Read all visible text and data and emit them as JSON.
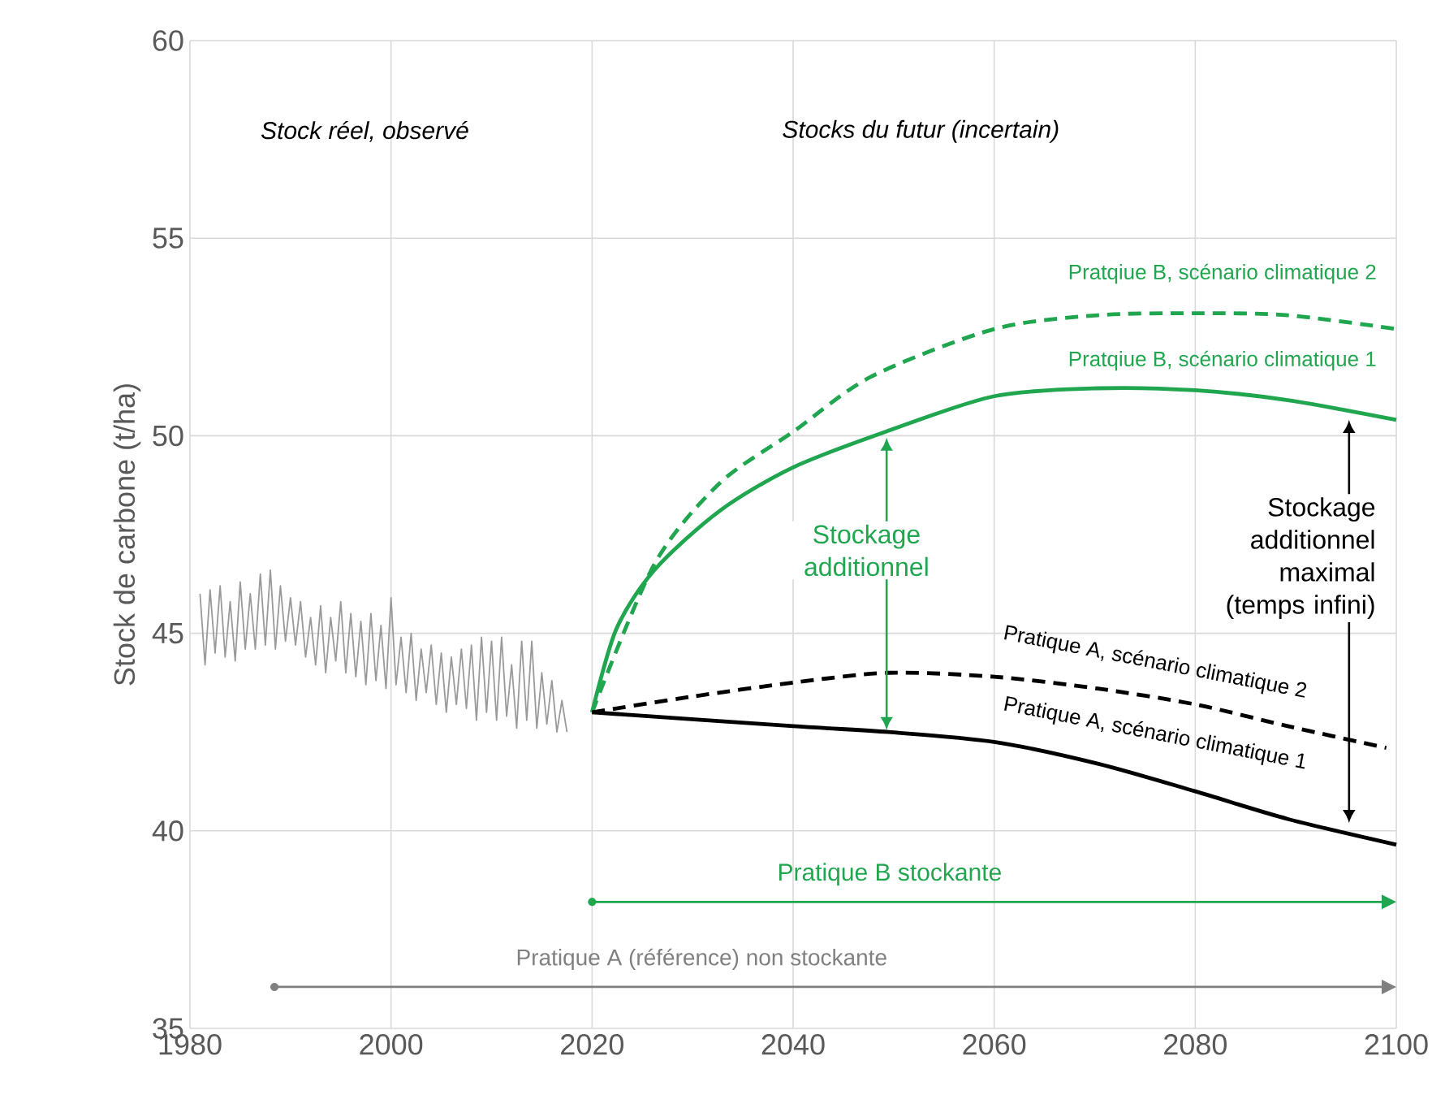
{
  "chart_data": {
    "type": "line",
    "ylabel": "Stock de carbone (t/ha)",
    "xlim": [
      1980,
      2100
    ],
    "xticks": [
      1980,
      2000,
      2020,
      2040,
      2060,
      2080,
      2100
    ],
    "ylim": [
      35,
      60
    ],
    "yticks": [
      35,
      40,
      45,
      50,
      55,
      60
    ],
    "grid": true,
    "marker": "none",
    "series": [
      {
        "color": "#9a9a9a",
        "line_style": "solid",
        "x": [
          1981,
          1981.5,
          1982,
          1982.5,
          1983,
          1983.5,
          1984,
          1984.5,
          1985,
          1985.5,
          1986,
          1986.5,
          1987,
          1987.5,
          1988,
          1988.5,
          1989,
          1989.5,
          1990,
          1990.5,
          1991,
          1991.5,
          1992,
          1992.5,
          1993,
          1993.5,
          1994,
          1994.5,
          1995,
          1995.5,
          1996,
          1996.5,
          1997,
          1997.5,
          1998,
          1998.5,
          1999,
          1999.5,
          2000,
          2000.5,
          2001,
          2001.5,
          2002,
          2002.5,
          2003,
          2003.5,
          2004,
          2004.5,
          2005,
          2005.5,
          2006,
          2006.5,
          2007,
          2007.5,
          2008,
          2008.5,
          2009,
          2009.5,
          2010,
          2010.5,
          2011,
          2011.5,
          2012,
          2012.5,
          2013,
          2013.5,
          2014,
          2014.5,
          2015,
          2015.5,
          2016,
          2016.5,
          2017,
          2017.5
        ],
        "values": [
          46.0,
          44.2,
          46.1,
          44.5,
          46.2,
          44.4,
          45.8,
          44.3,
          46.3,
          44.6,
          46.0,
          44.6,
          46.5,
          44.7,
          46.6,
          44.6,
          46.2,
          44.8,
          45.9,
          44.7,
          45.8,
          44.4,
          45.4,
          44.2,
          45.7,
          44.0,
          45.4,
          44.3,
          45.8,
          44.0,
          45.5,
          43.9,
          45.3,
          43.7,
          45.5,
          43.8,
          45.2,
          43.6,
          45.9,
          43.7,
          44.9,
          43.5,
          45.0,
          43.3,
          44.6,
          43.5,
          44.7,
          43.2,
          44.5,
          43.0,
          44.4,
          43.2,
          44.6,
          43.1,
          44.7,
          42.8,
          44.9,
          43.0,
          44.8,
          42.8,
          44.9,
          42.9,
          44.2,
          42.6,
          44.8,
          42.8,
          44.8,
          42.6,
          44.0,
          42.7,
          43.8,
          42.5,
          43.3,
          42.5
        ]
      },
      {
        "color": "#1fa64f",
        "line_style": "dashed",
        "x": [
          2020,
          2026.2,
          2032.7,
          2040,
          2047.8,
          2060,
          2070.3,
          2080,
          2089.2,
          2100
        ],
        "values": [
          43,
          46.75,
          48.8,
          50.1,
          51.5,
          52.7,
          53.05,
          53.1,
          53.05,
          52.7
        ]
      },
      {
        "color": "#1fa64f",
        "line_style": "solid",
        "x": [
          2020,
          2022.4,
          2026.2,
          2032.7,
          2040,
          2049.2,
          2060,
          2070.3,
          2080,
          2089.2,
          2100
        ],
        "values": [
          43,
          45.1,
          46.6,
          48.1,
          49.2,
          50.1,
          51.0,
          51.2,
          51.15,
          50.9,
          50.4
        ]
      },
      {
        "color": "#000000",
        "line_style": "dashed",
        "x": [
          2020,
          2030,
          2040,
          2049.5,
          2060,
          2070.3,
          2080,
          2089.2,
          2099
        ],
        "values": [
          43,
          43.4,
          43.75,
          44.0,
          43.9,
          43.6,
          43.2,
          42.65,
          42.1
        ]
      },
      {
        "color": "#000000",
        "line_style": "solid",
        "x": [
          2020,
          2040,
          2049.5,
          2060,
          2070.3,
          2080,
          2089.2,
          2100
        ],
        "values": [
          43,
          42.65,
          42.5,
          42.25,
          41.7,
          41.0,
          40.3,
          39.65
        ]
      }
    ],
    "annotations": [
      "Stock réel, observé",
      "Stocks du futur (incertain)",
      "Pratqiue B, scénario climatique 2",
      "Pratqiue B, scénario climatique 1",
      "Pratique A, scénario climatique 2",
      "Pratique A, scénario climatique 1",
      "Stockage additionnel",
      "Stockage additionnel maximal (temps infini)",
      "Pratique B stockante",
      "Pratique A (référence) non stockante"
    ]
  }
}
